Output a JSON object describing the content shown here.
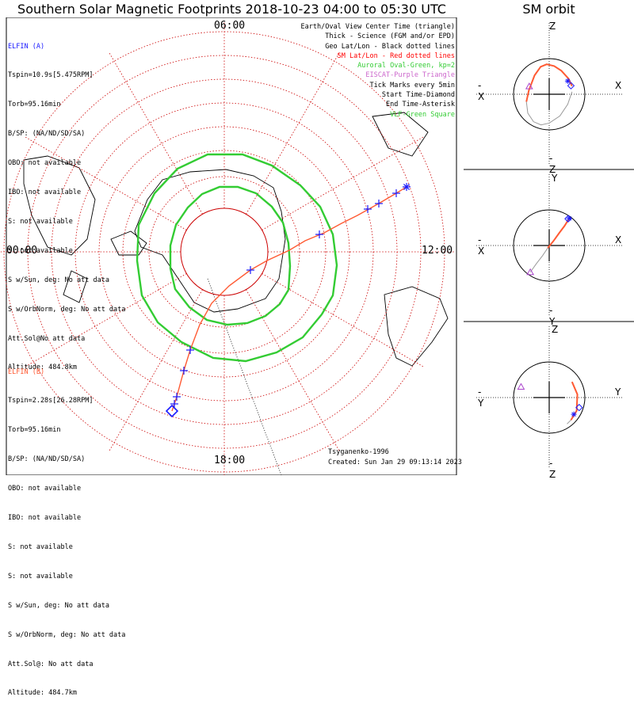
{
  "header": {
    "title": "Southern Solar Magnetic Footprints 2018-10-23 04:00 to 05:30 UTC",
    "orbit_title": "SM orbit"
  },
  "colors": {
    "elfin_a": "#1a1aff",
    "elfin_b": "#ff5a33",
    "track": "#ff5a33",
    "sm_grid": "#cc0000",
    "oval": "#33cc33",
    "eiscat": "#aa44cc",
    "vlf": "#33cc33",
    "land": "#000000"
  },
  "info_a": {
    "name": "ELFIN (A)",
    "lines": [
      "Tspin=10.9s[5.475RPM]",
      "Torb=95.16min",
      "B/SP: (NA/ND/SD/SA)",
      "OBO: not available",
      "IBO: not available",
      "S: not available",
      "S: not available",
      "S w/Sun, deg: No att data",
      "S w/OrbNorm, deg: No att data",
      "Att.Sol@No att data",
      "Altitude: 484.8km"
    ]
  },
  "info_b": {
    "name": "ELFIN (B)",
    "lines": [
      "Tspin=2.28s[26.28RPM]",
      "Torb=95.16min",
      "B/SP: (NA/ND/SD/SA)",
      "OBO: not available",
      "IBO: not available",
      "S: not available",
      "S: not available",
      "S w/Sun, deg: No att data",
      "S w/OrbNorm, deg: No att data",
      "Att.Sol@: No att data",
      "Altitude: 484.7km"
    ]
  },
  "legend": [
    {
      "text": "Earth/Oval View Center Time (triangle)",
      "color": "#000000"
    },
    {
      "text": "Thick - Science (FGM and/or EPD)",
      "color": "#000000"
    },
    {
      "text": "Geo Lat/Lon - Black dotted lines",
      "color": "#000000"
    },
    {
      "text": "SM Lat/Lon - Red dotted lines",
      "color": "#ff0000"
    },
    {
      "text": "Auroral Oval-Green, kp=2",
      "color": "#33cc33"
    },
    {
      "text": "EISCAT-Purple Triangle",
      "color": "#cc66cc"
    },
    {
      "text": "Tick Marks every 5min",
      "color": "#000000"
    },
    {
      "text": "Start Time-Diamond",
      "color": "#000000"
    },
    {
      "text": "End Time-Asterisk",
      "color": "#000000"
    },
    {
      "text": "VLF-Green Square",
      "color": "#33cc33"
    }
  ],
  "mlt_labels": {
    "top": "06:00",
    "left": "00:00",
    "right": "12:00",
    "bottom": "18:00"
  },
  "footer": {
    "model": "Tsyganenko-1996",
    "created": "Created: Sun Jan 29 09:13:14 2023"
  },
  "orbit_panels": [
    {
      "top": "Z",
      "bottom": "-Z",
      "left": "-X",
      "right": "X"
    },
    {
      "top": "Y",
      "bottom": "-Y",
      "left": "-X",
      "right": "X"
    },
    {
      "top": "Z",
      "bottom": "-Z",
      "left": "-Y",
      "right": "Y"
    }
  ],
  "chart_data": {
    "type": "polar-map",
    "projection": "southern hemisphere magnetic footprints, MLT around perimeter",
    "mlt_ticks": [
      "00:00",
      "06:00",
      "12:00",
      "18:00"
    ],
    "track_points": [
      [
        2.3,
        -0.82
      ],
      [
        2.17,
        -0.74
      ],
      [
        2.0,
        -0.64
      ],
      [
        1.86,
        -0.56
      ],
      [
        1.68,
        -0.46
      ],
      [
        1.48,
        -0.36
      ],
      [
        1.26,
        -0.24
      ],
      [
        1.02,
        -0.14
      ],
      [
        0.82,
        -0.02
      ],
      [
        0.54,
        0.11
      ],
      [
        0.33,
        0.23
      ],
      [
        0.06,
        0.43
      ],
      [
        -0.16,
        0.65
      ],
      [
        -0.31,
        0.92
      ],
      [
        -0.43,
        1.24
      ],
      [
        -0.51,
        1.5
      ],
      [
        -0.6,
        1.83
      ],
      [
        -0.66,
        2.01
      ]
    ],
    "tick_points": [
      [
        2.17,
        -0.74
      ],
      [
        1.95,
        -0.61
      ],
      [
        1.81,
        -0.54
      ],
      [
        1.2,
        -0.22
      ],
      [
        0.33,
        0.23
      ],
      [
        -0.43,
        1.24
      ],
      [
        -0.51,
        1.5
      ],
      [
        -0.6,
        1.83
      ],
      [
        -0.63,
        1.92
      ]
    ],
    "end_point": [
      2.3,
      -0.82
    ],
    "start_point": [
      -0.66,
      2.01
    ],
    "oval_outer": [
      [
        1.23,
        0.79
      ],
      [
        1.37,
        0.55
      ],
      [
        1.42,
        0.17
      ],
      [
        1.37,
        -0.22
      ],
      [
        1.21,
        -0.57
      ],
      [
        0.96,
        -0.84
      ],
      [
        0.6,
        -1.09
      ],
      [
        0.23,
        -1.23
      ],
      [
        -0.21,
        -1.23
      ],
      [
        -0.59,
        -1.05
      ],
      [
        -0.88,
        -0.74
      ],
      [
        -1.08,
        -0.34
      ],
      [
        -1.1,
        0.11
      ],
      [
        -1.04,
        0.55
      ],
      [
        -0.84,
        0.89
      ],
      [
        -0.54,
        1.14
      ],
      [
        -0.14,
        1.34
      ],
      [
        0.27,
        1.38
      ],
      [
        0.66,
        1.27
      ],
      [
        0.99,
        1.08
      ],
      [
        1.23,
        0.79
      ]
    ],
    "oval_inner": [
      [
        0.81,
        0.48
      ],
      [
        0.83,
        0.18
      ],
      [
        0.81,
        -0.11
      ],
      [
        0.74,
        -0.37
      ],
      [
        0.6,
        -0.57
      ],
      [
        0.4,
        -0.74
      ],
      [
        0.17,
        -0.82
      ],
      [
        -0.06,
        -0.82
      ],
      [
        -0.28,
        -0.73
      ],
      [
        -0.46,
        -0.56
      ],
      [
        -0.61,
        -0.34
      ],
      [
        -0.68,
        -0.08
      ],
      [
        -0.68,
        0.21
      ],
      [
        -0.62,
        0.47
      ],
      [
        -0.44,
        0.7
      ],
      [
        -0.22,
        0.86
      ],
      [
        0.04,
        0.92
      ],
      [
        0.29,
        0.9
      ],
      [
        0.52,
        0.81
      ],
      [
        0.7,
        0.66
      ],
      [
        0.81,
        0.48
      ]
    ],
    "orbits": [
      {
        "proj": "X-Z",
        "track": [
          [
            0.64,
            0.23
          ],
          [
            0.54,
            0.44
          ],
          [
            0.34,
            0.66
          ],
          [
            0.14,
            0.79
          ],
          [
            -0.07,
            0.84
          ],
          [
            -0.24,
            0.77
          ],
          [
            -0.41,
            0.53
          ],
          [
            -0.57,
            0.11
          ],
          [
            -0.64,
            -0.21
          ],
          [
            -0.6,
            -0.53
          ],
          [
            -0.44,
            -0.77
          ],
          [
            -0.23,
            -0.86
          ],
          [
            0.0,
            -0.81
          ],
          [
            0.3,
            -0.61
          ],
          [
            0.52,
            -0.28
          ],
          [
            0.64,
            0.07
          ]
        ],
        "start": [
          0.61,
          0.24
        ],
        "end": [
          0.52,
          0.37
        ],
        "view": [
          -0.56,
          0.22
        ]
      },
      {
        "proj": "X-Y",
        "track": [
          [
            0.56,
            0.76
          ],
          [
            0.43,
            0.55
          ],
          [
            0.28,
            0.35
          ],
          [
            0.13,
            0.14
          ],
          [
            -0.04,
            -0.07
          ],
          [
            -0.19,
            -0.29
          ],
          [
            -0.36,
            -0.51
          ],
          [
            -0.53,
            -0.75
          ]
        ],
        "start": [
          0.53,
          0.75
        ],
        "end": [
          0.56,
          0.76
        ],
        "view": [
          -0.53,
          -0.75
        ]
      },
      {
        "proj": "Y-Z",
        "track": [
          [
            0.64,
            0.44
          ],
          [
            0.79,
            0.09
          ],
          [
            0.77,
            -0.37
          ],
          [
            0.61,
            -0.63
          ],
          [
            0.5,
            -0.74
          ]
        ],
        "start": [
          0.84,
          -0.28
        ],
        "end": [
          0.69,
          -0.47
        ],
        "view": [
          -0.79,
          0.3
        ]
      }
    ]
  }
}
